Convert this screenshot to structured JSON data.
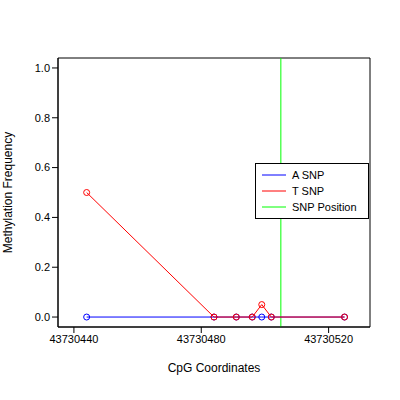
{
  "chart_data": {
    "type": "line",
    "x_label": "CpG Coordinates",
    "y_label": "Methylation Frequency",
    "x": [
      43730444,
      43730484,
      43730491,
      43730496,
      43730499,
      43730502,
      43730525
    ],
    "series": [
      {
        "name": "A SNP",
        "color": "#0000ff",
        "marker": "circle",
        "values": [
          0,
          0,
          0,
          0,
          0,
          0,
          0
        ]
      },
      {
        "name": "T SNP",
        "color": "#ff0000",
        "marker": "circle",
        "values": [
          0.5,
          0,
          0,
          0,
          0.05,
          0,
          0
        ]
      }
    ],
    "annotations": [
      {
        "type": "vline",
        "x": 43730505,
        "label": "SNP Position",
        "color": "#00ff00"
      }
    ],
    "xlim": [
      43730435,
      43730533
    ],
    "ylim": [
      -0.04,
      1.04
    ],
    "xticks": [
      43730440,
      43730480,
      43730520
    ],
    "yticks": [
      {
        "value": 0,
        "label": "0.0"
      },
      {
        "value": 0.2,
        "label": "0.2"
      },
      {
        "value": 0.4,
        "label": "0.4"
      },
      {
        "value": 0.6,
        "label": "0.6"
      },
      {
        "value": 0.8,
        "label": "0.8"
      },
      {
        "value": 1,
        "label": "1.0"
      }
    ],
    "legend": "right"
  }
}
